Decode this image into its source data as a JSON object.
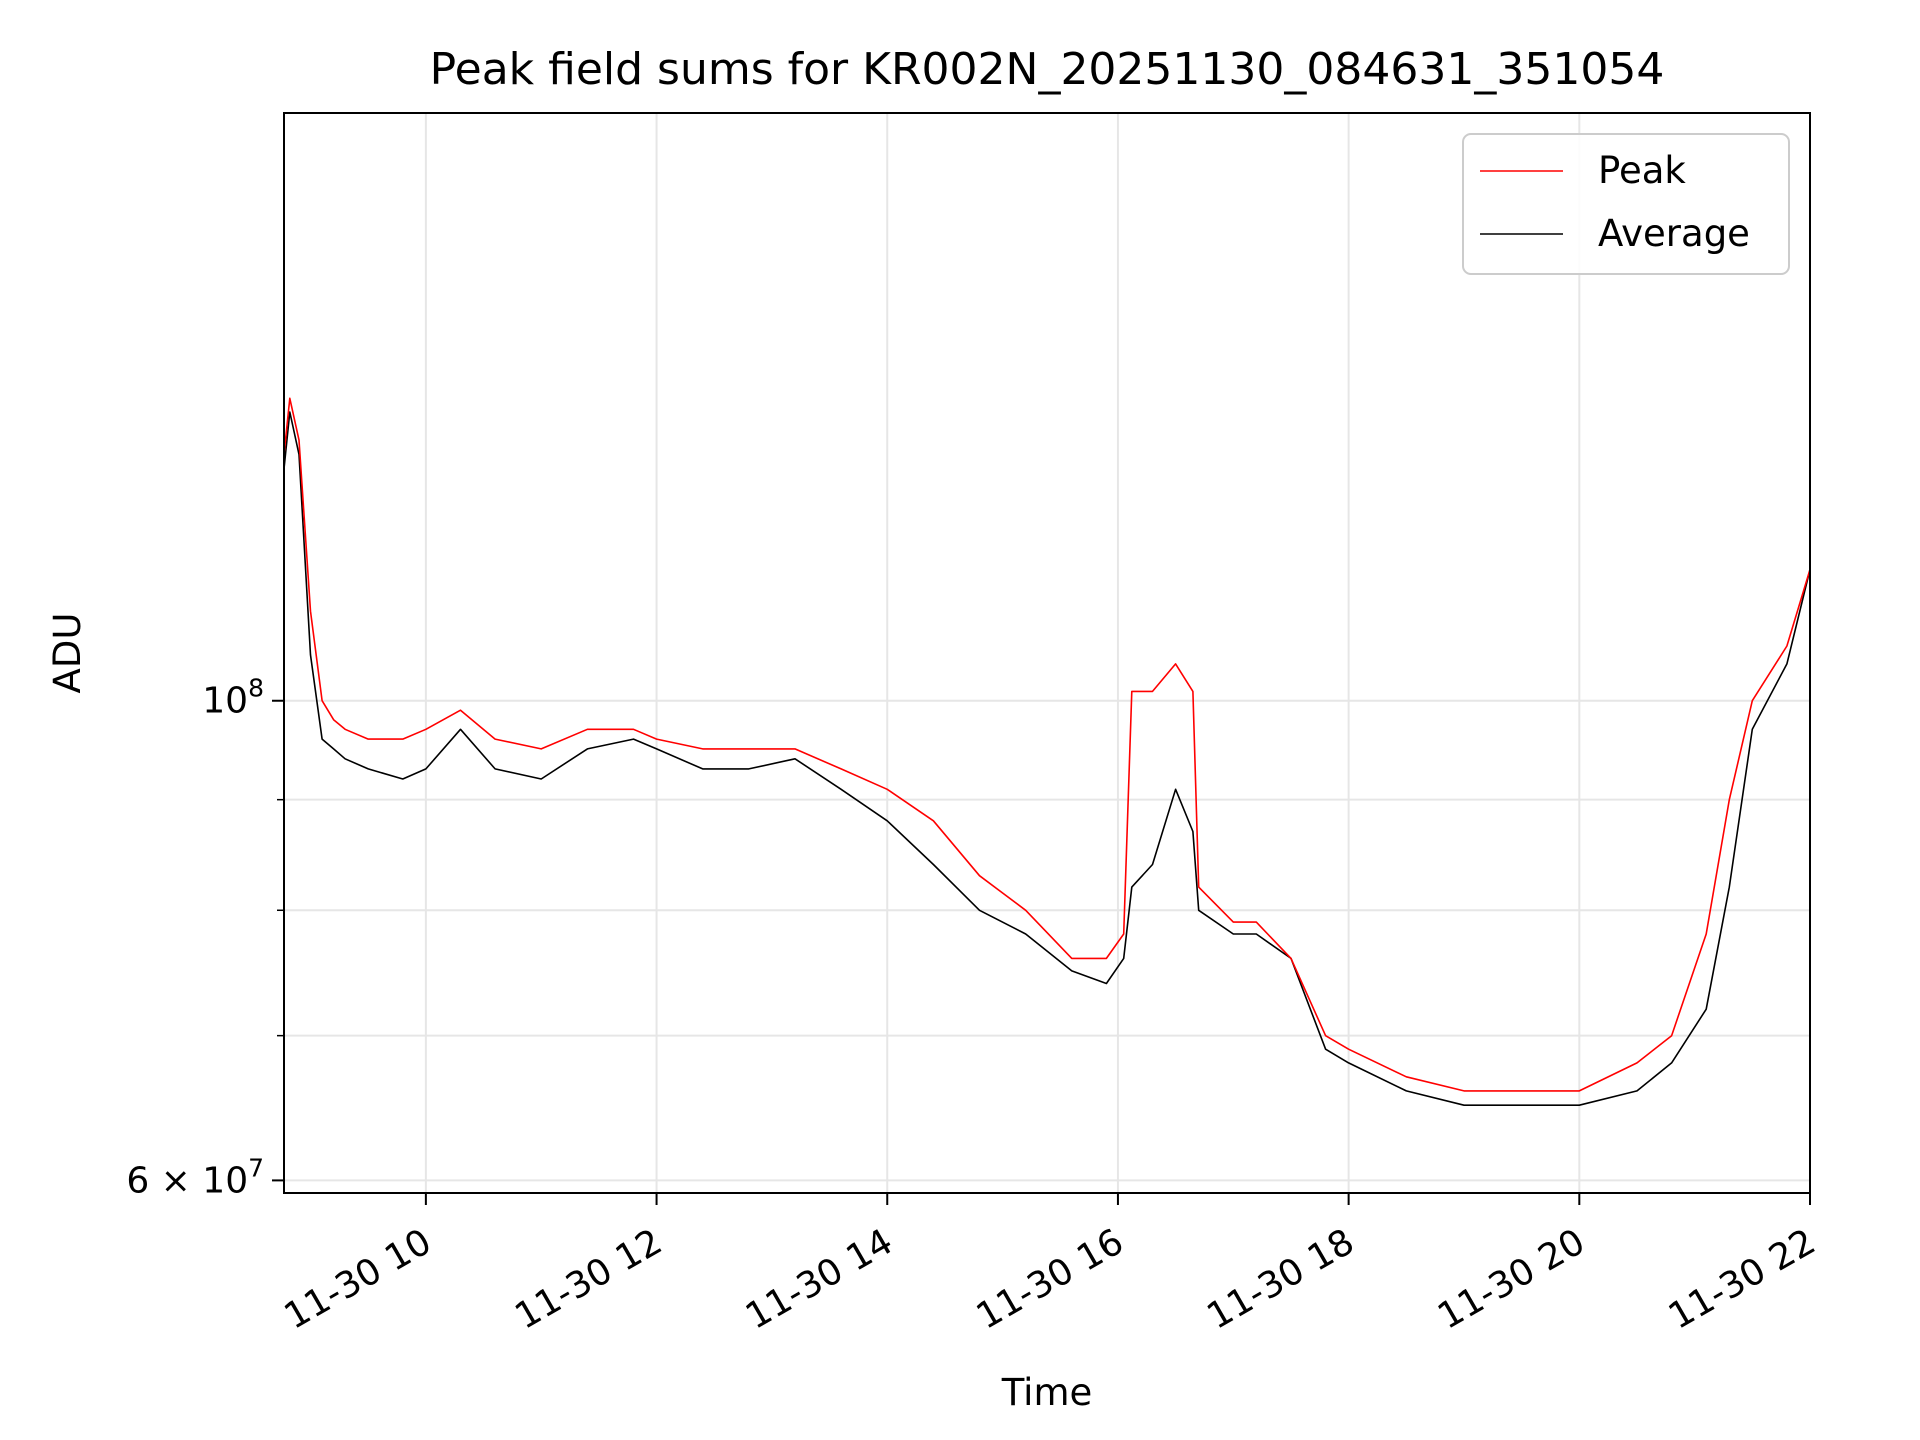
{
  "chart_data": {
    "type": "line",
    "title": "Peak field sums for KR002N_20251130_084631_351054",
    "xlabel": "Time",
    "ylabel": "ADU",
    "yscale": "log",
    "grid": true,
    "legend_position": "top-right",
    "x_unit": "hour of 2025-11-30",
    "xlim": [
      8.77,
      22.0
    ],
    "ylim": [
      59200000.0,
      187000000.0
    ],
    "x_ticks": [
      {
        "value": 10,
        "label": "11-30 10"
      },
      {
        "value": 12,
        "label": "11-30 12"
      },
      {
        "value": 14,
        "label": "11-30 14"
      },
      {
        "value": 16,
        "label": "11-30 16"
      },
      {
        "value": 18,
        "label": "11-30 18"
      },
      {
        "value": 20,
        "label": "11-30 20"
      },
      {
        "value": 22,
        "label": "11-30 22"
      }
    ],
    "y_ticks_major": [
      {
        "value": 60000000,
        "base": "6 × 10",
        "exp": "7"
      },
      {
        "value": 100000000,
        "base": "10",
        "exp": "8"
      }
    ],
    "y_ticks_minor": [
      70000000,
      80000000,
      90000000
    ],
    "colors": {
      "peak": "#ff0000",
      "average": "#000000",
      "grid": "#e6e6e6"
    },
    "series": [
      {
        "name": "Peak",
        "color": "#ff0000",
        "x": [
          8.77,
          8.82,
          8.9,
          9.0,
          9.1,
          9.2,
          9.3,
          9.5,
          9.8,
          10.0,
          10.3,
          10.6,
          11.0,
          11.4,
          11.8,
          12.0,
          12.4,
          12.8,
          13.2,
          13.6,
          14.0,
          14.4,
          14.8,
          15.2,
          15.6,
          15.9,
          16.05,
          16.12,
          16.3,
          16.5,
          16.65,
          16.7,
          17.0,
          17.2,
          17.5,
          17.8,
          18.0,
          18.5,
          19.0,
          19.5,
          20.0,
          20.5,
          20.8,
          21.1,
          21.3,
          21.5,
          21.8,
          22.0
        ],
        "y": [
          130000000,
          138000000,
          132000000,
          110000000,
          100000000,
          98000000,
          97000000,
          96000000,
          96000000,
          97000000,
          99000000,
          96000000,
          95000000,
          97000000,
          97000000,
          96000000,
          95000000,
          95000000,
          95000000,
          93000000,
          91000000,
          88000000,
          83000000,
          80000000,
          76000000,
          76000000,
          78000000,
          101000000,
          101000000,
          104000000,
          101000000,
          82000000,
          79000000,
          79000000,
          76000000,
          70000000,
          69000000,
          67000000,
          66000000,
          66000000,
          66000000,
          68000000,
          70000000,
          78000000,
          90000000,
          100000000,
          106000000,
          115000000
        ]
      },
      {
        "name": "Average",
        "color": "#000000",
        "x": [
          8.77,
          8.82,
          8.9,
          9.0,
          9.1,
          9.2,
          9.3,
          9.5,
          9.8,
          10.0,
          10.3,
          10.6,
          11.0,
          11.4,
          11.8,
          12.0,
          12.4,
          12.8,
          13.2,
          13.6,
          14.0,
          14.4,
          14.8,
          15.2,
          15.6,
          15.9,
          16.05,
          16.12,
          16.3,
          16.5,
          16.65,
          16.7,
          17.0,
          17.2,
          17.5,
          17.8,
          18.0,
          18.5,
          19.0,
          19.5,
          20.0,
          20.5,
          20.8,
          21.1,
          21.3,
          21.5,
          21.8,
          22.0
        ],
        "y": [
          128000000,
          136000000,
          130000000,
          105000000,
          96000000,
          95000000,
          94000000,
          93000000,
          92000000,
          93000000,
          97000000,
          93000000,
          92000000,
          95000000,
          96000000,
          95000000,
          93000000,
          93000000,
          94000000,
          91000000,
          88000000,
          84000000,
          80000000,
          78000000,
          75000000,
          74000000,
          76000000,
          82000000,
          84000000,
          91000000,
          87000000,
          80000000,
          78000000,
          78000000,
          76000000,
          69000000,
          68000000,
          66000000,
          65000000,
          65000000,
          65000000,
          66000000,
          68000000,
          72000000,
          82000000,
          97000000,
          104000000,
          115000000
        ]
      }
    ]
  }
}
